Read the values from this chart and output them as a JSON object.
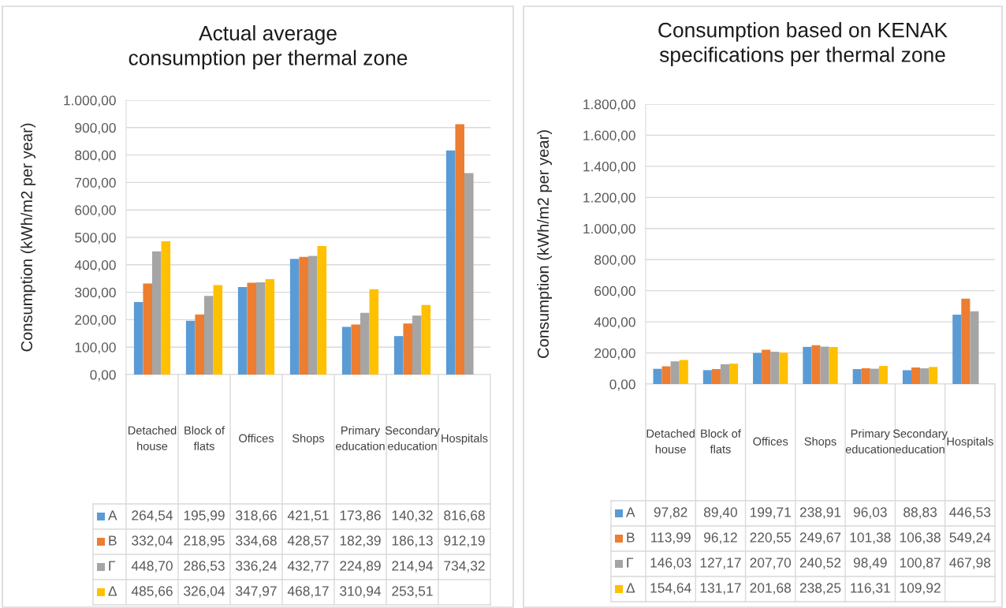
{
  "chart_data": [
    {
      "type": "bar",
      "title": "Actual average\nconsumption per thermal zone",
      "ylabel": "Consumption (kWh/m2 per year)",
      "categories": [
        "Detached\nhouse",
        "Block of\nflats",
        "Offices",
        "Shops",
        "Primary\neducation",
        "Secondary\neducation",
        "Hospitals"
      ],
      "series": [
        {
          "name": "Α",
          "color": "#5b9bd5",
          "values": [
            264.54,
            195.99,
            318.66,
            421.51,
            173.86,
            140.32,
            816.68
          ],
          "value_labels": [
            "264,54",
            "195,99",
            "318,66",
            "421,51",
            "173,86",
            "140,32",
            "816,68"
          ]
        },
        {
          "name": "Β",
          "color": "#ed7d31",
          "values": [
            332.04,
            218.95,
            334.68,
            428.57,
            182.39,
            186.13,
            912.19
          ],
          "value_labels": [
            "332,04",
            "218,95",
            "334,68",
            "428,57",
            "182,39",
            "186,13",
            "912,19"
          ]
        },
        {
          "name": "Γ",
          "color": "#a5a5a5",
          "values": [
            448.7,
            286.53,
            336.24,
            432.77,
            224.89,
            214.94,
            734.32
          ],
          "value_labels": [
            "448,70",
            "286,53",
            "336,24",
            "432,77",
            "224,89",
            "214,94",
            "734,32"
          ]
        },
        {
          "name": "Δ",
          "color": "#ffc000",
          "values": [
            485.66,
            326.04,
            347.97,
            468.17,
            310.94,
            253.51,
            null
          ],
          "value_labels": [
            "485,66",
            "326,04",
            "347,97",
            "468,17",
            "310,94",
            "253,51",
            null
          ]
        }
      ],
      "ylim": [
        0,
        1000
      ],
      "yticks": [
        {
          "value": 0,
          "label": "0,00"
        },
        {
          "value": 100,
          "label": "100,00"
        },
        {
          "value": 200,
          "label": "200,00"
        },
        {
          "value": 300,
          "label": "300,00"
        },
        {
          "value": 400,
          "label": "400,00"
        },
        {
          "value": 500,
          "label": "500,00"
        },
        {
          "value": 600,
          "label": "600,00"
        },
        {
          "value": 700,
          "label": "700,00"
        },
        {
          "value": 800,
          "label": "800,00"
        },
        {
          "value": 900,
          "label": "900,00"
        },
        {
          "value": 1000,
          "label": "1.000,00"
        }
      ],
      "grid": "y",
      "legend": "bottom"
    },
    {
      "type": "bar",
      "title": "Consumption based on KENAK\nspecifications per thermal zone",
      "ylabel": "Consumption (kWh/m2 per year)",
      "categories": [
        "Detached\nhouse",
        "Block of\nflats",
        "Offices",
        "Shops",
        "Primary\neducation",
        "Secondary\neducation",
        "Hospitals"
      ],
      "series": [
        {
          "name": "Α",
          "color": "#5b9bd5",
          "values": [
            97.82,
            89.4,
            199.71,
            238.91,
            96.03,
            88.83,
            446.53
          ],
          "value_labels": [
            "97,82",
            "89,40",
            "199,71",
            "238,91",
            "96,03",
            "88,83",
            "446,53"
          ]
        },
        {
          "name": "Β",
          "color": "#ed7d31",
          "values": [
            113.99,
            96.12,
            220.55,
            249.67,
            101.38,
            106.38,
            549.24
          ],
          "value_labels": [
            "113,99",
            "96,12",
            "220,55",
            "249,67",
            "101,38",
            "106,38",
            "549,24"
          ]
        },
        {
          "name": "Γ",
          "color": "#a5a5a5",
          "values": [
            146.03,
            127.17,
            207.7,
            240.52,
            98.49,
            100.87,
            467.98
          ],
          "value_labels": [
            "146,03",
            "127,17",
            "207,70",
            "240,52",
            "98,49",
            "100,87",
            "467,98"
          ]
        },
        {
          "name": "Δ",
          "color": "#ffc000",
          "values": [
            154.64,
            131.17,
            201.68,
            238.25,
            116.31,
            109.92,
            null
          ],
          "value_labels": [
            "154,64",
            "131,17",
            "201,68",
            "238,25",
            "116,31",
            "109,92",
            null
          ]
        }
      ],
      "ylim": [
        0,
        1800
      ],
      "yticks": [
        {
          "value": 0,
          "label": "0,00"
        },
        {
          "value": 200,
          "label": "200,00"
        },
        {
          "value": 400,
          "label": "400,00"
        },
        {
          "value": 600,
          "label": "600,00"
        },
        {
          "value": 800,
          "label": "800,00"
        },
        {
          "value": 1000,
          "label": "1.000,00"
        },
        {
          "value": 1200,
          "label": "1.200,00"
        },
        {
          "value": 1400,
          "label": "1.400,00"
        },
        {
          "value": 1600,
          "label": "1.600,00"
        },
        {
          "value": 1800,
          "label": "1.800,00"
        }
      ],
      "grid": "y",
      "legend": "bottom"
    }
  ]
}
